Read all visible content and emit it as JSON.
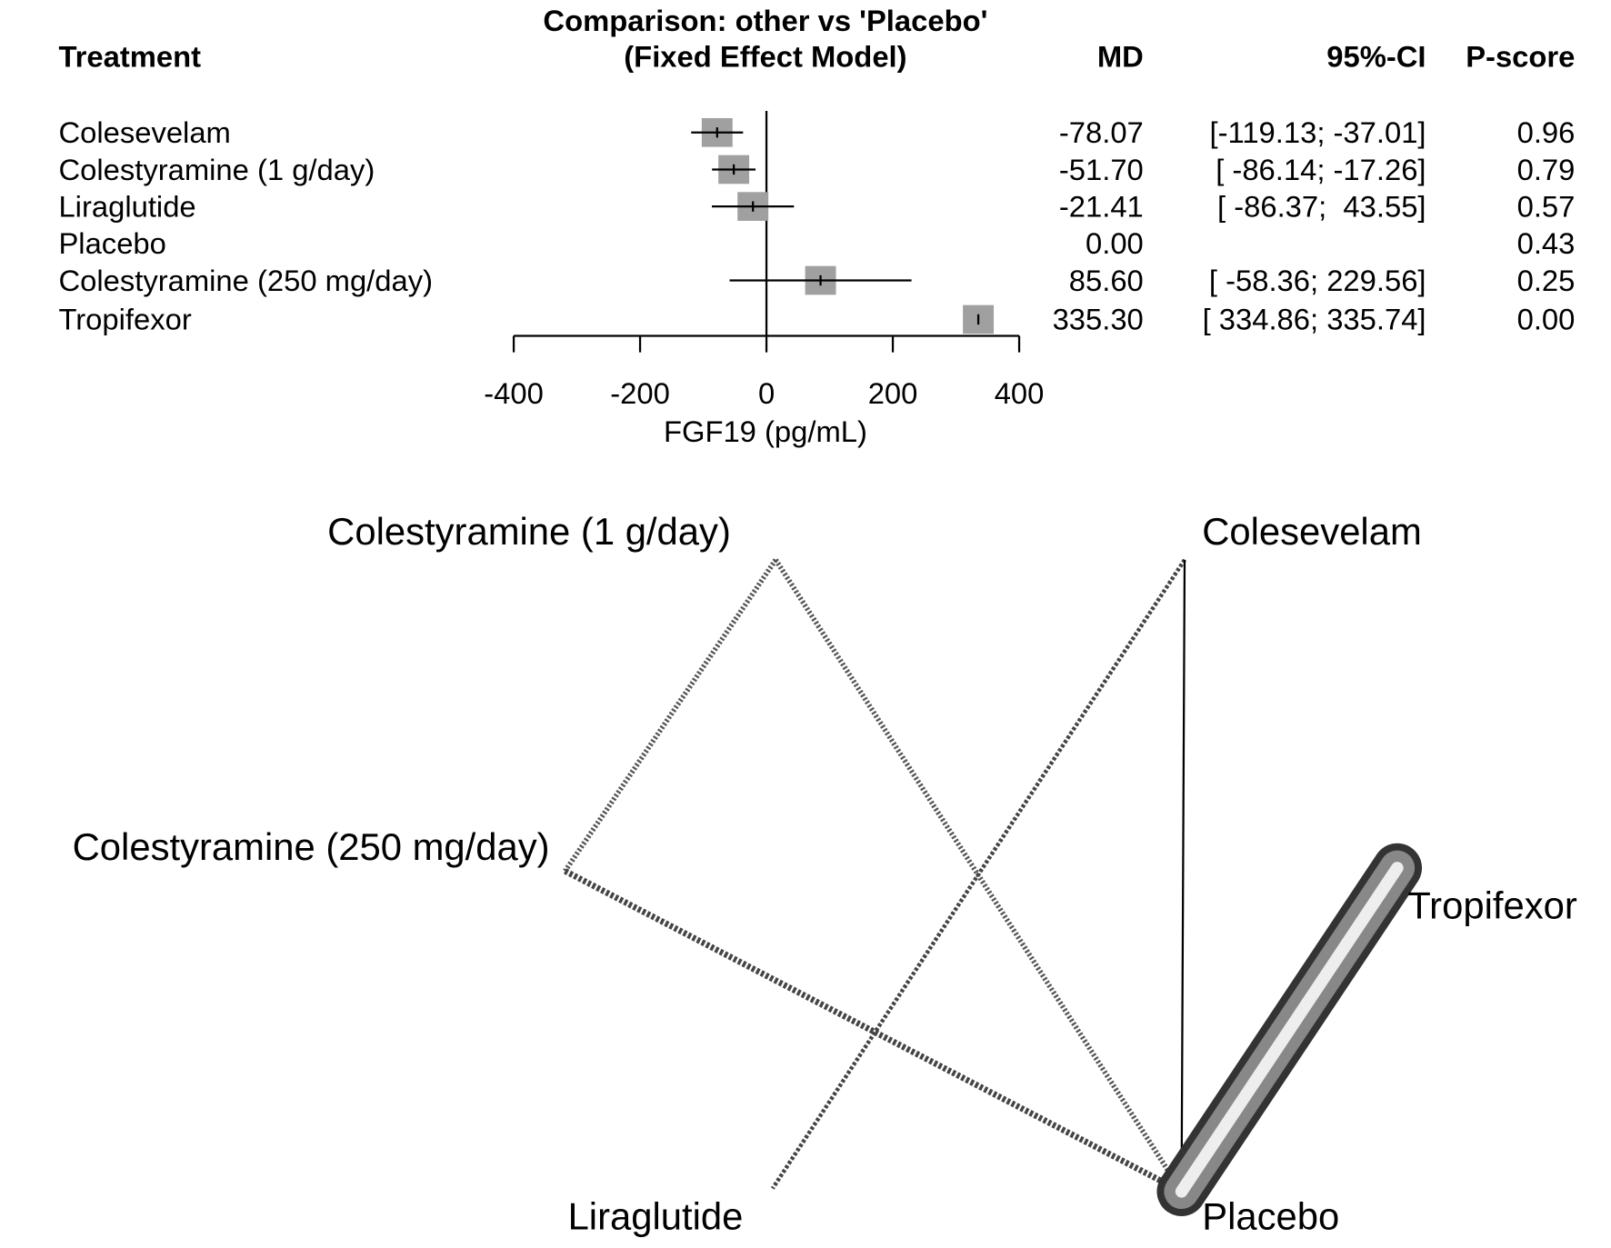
{
  "chart_data": [
    {
      "type": "forest",
      "title": [
        "Comparison: other vs 'Placebo'",
        "(Fixed Effect Model)"
      ],
      "columns": {
        "treatment": "Treatment",
        "md": "MD",
        "ci": "95%-CI",
        "p_score": "P-score"
      },
      "categories": [
        "Colesevelam",
        "Colestyramine (1 g/day)",
        "Liraglutide",
        "Placebo",
        "Colestyramine (250 mg/day)",
        "Tropifexor"
      ],
      "values": [
        -78.07,
        -51.7,
        -21.41,
        0,
        85.6,
        335.3
      ],
      "value_labels": [
        "-78.07",
        "-51.70",
        "-21.41",
        "0.00",
        "85.60",
        "335.30"
      ],
      "ci_lower": [
        -119.13,
        -86.14,
        -86.37,
        null,
        -58.36,
        334.86
      ],
      "ci_upper": [
        -37.01,
        -17.26,
        43.55,
        null,
        229.56,
        335.74
      ],
      "ci_labels": [
        "[-119.13; -37.01]",
        "[ -86.14; -17.26]",
        "[ -86.37;  43.55]",
        null,
        "[ -58.36; 229.56]",
        "[ 334.86; 335.74]"
      ],
      "p_scores": [
        "0.96",
        "0.79",
        "0.57",
        "0.43",
        "0.25",
        "0.00"
      ],
      "xlabel": "FGF19 (pg/mL)",
      "xlim": [
        -400,
        400
      ],
      "xticks": [
        -400,
        -200,
        0,
        200,
        400
      ],
      "color": "#a0a0a0"
    },
    {
      "type": "network",
      "nodes": [
        "Colestyramine (1 g/day)",
        "Colesevelam",
        "Colestyramine (250 mg/day)",
        "Tropifexor",
        "Liraglutide",
        "Placebo"
      ],
      "edges": [
        {
          "from": "Colestyramine (1 g/day)",
          "to": "Colestyramine (250 mg/day)"
        },
        {
          "from": "Colestyramine (1 g/day)",
          "to": "Placebo"
        },
        {
          "from": "Colesevelam",
          "to": "Liraglutide"
        },
        {
          "from": "Colesevelam",
          "to": "Placebo"
        },
        {
          "from": "Colestyramine (250 mg/day)",
          "to": "Placebo"
        },
        {
          "from": "Tropifexor",
          "to": "Placebo"
        }
      ]
    }
  ]
}
